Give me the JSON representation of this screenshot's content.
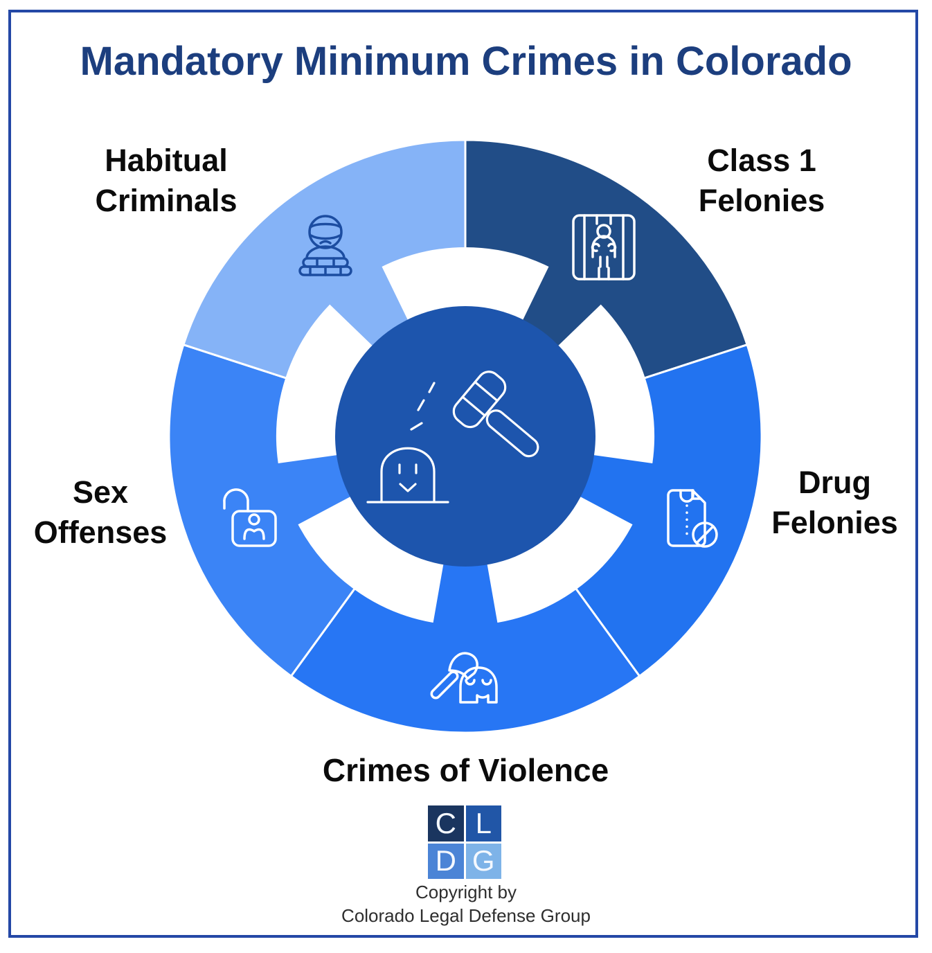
{
  "title": "Mandatory Minimum Crimes in Colorado",
  "theme": {
    "background": "#ffffff",
    "border_color": "#2448a6",
    "title_color": "#1c3e7e",
    "label_color": "#0b0b0b",
    "icon_stroke_light": "#ffffff",
    "icon_stroke_dark": "#1c4da1"
  },
  "chart_data": {
    "type": "pie",
    "variant": "donut-wheel-infographic",
    "title": "Mandatory Minimum Crimes in Colorado",
    "categories": [
      "Class 1 Felonies",
      "Drug Felonies",
      "Crimes of Violence",
      "Sex Offenses",
      "Habitual Criminals"
    ],
    "values": [
      20,
      20,
      20,
      20,
      20
    ],
    "start_angle_deg": 90,
    "direction": "clockwise",
    "legend": "none",
    "grid": false,
    "segments": [
      {
        "label": "Class 1 Felonies",
        "label_lines": [
          "Class 1",
          "Felonies"
        ],
        "color": "#214d87",
        "icon": "prisoner-behind-bars"
      },
      {
        "label": "Drug Felonies",
        "label_lines": [
          "Drug",
          "Felonies"
        ],
        "color": "#2273f0",
        "icon": "drug-packet-prohibited"
      },
      {
        "label": "Crimes of Violence",
        "label_lines": [
          "Crimes of Violence"
        ],
        "color": "#2776f4",
        "icon": "axe-smashing-object"
      },
      {
        "label": "Sex Offenses",
        "label_lines": [
          "Sex",
          "Offenses"
        ],
        "color": "#3b84f6",
        "icon": "open-padlock-person"
      },
      {
        "label": "Habitual Criminals",
        "label_lines": [
          "Habitual",
          "Criminals"
        ],
        "color": "#85b3f7",
        "icon": "burglar"
      }
    ],
    "center": {
      "color": "#1d55ad",
      "icon": "gavel-striking-person"
    }
  },
  "logo": {
    "letters": [
      "C",
      "L",
      "D",
      "G"
    ],
    "colors": [
      "#1a355f",
      "#2156a7",
      "#4b84d6",
      "#7eb3e8"
    ]
  },
  "footer": {
    "line1": "Copyright by",
    "line2": "Colorado Legal Defense Group"
  }
}
